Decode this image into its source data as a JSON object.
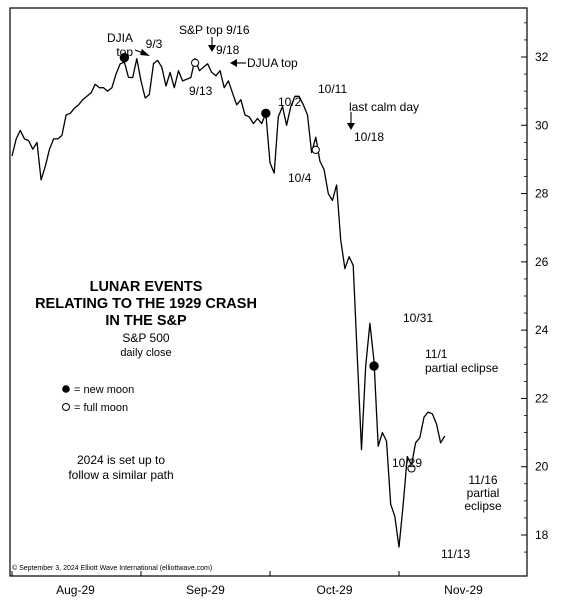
{
  "chart_data": {
    "type": "line",
    "title": [
      "LUNAR EVENTS",
      "RELATING TO THE 1929 CRASH",
      "IN THE S&P"
    ],
    "subtitle": [
      "S&P 500",
      "daily close"
    ],
    "xlabel": "",
    "ylabel": "",
    "ylim": [
      17,
      33.5
    ],
    "yticks": [
      18,
      20,
      22,
      24,
      26,
      28,
      30,
      32
    ],
    "xticks": [
      {
        "label": "Aug-29",
        "x": 0.25
      },
      {
        "label": "Sep-29",
        "x": 31.5
      },
      {
        "label": "Oct-29",
        "x": 62.5
      },
      {
        "label": "Nov-29",
        "x": 93.5
      }
    ],
    "xlim": [
      -15,
      109
    ],
    "series": [
      {
        "values": [
          [
            -15,
            29.1
          ],
          [
            -14,
            29.6
          ],
          [
            -13,
            29.85
          ],
          [
            -12,
            29.6
          ],
          [
            -11,
            29.55
          ],
          [
            -10,
            29.3
          ],
          [
            -9,
            29.5
          ],
          [
            -8,
            28.4
          ],
          [
            -7,
            28.8
          ],
          [
            -6,
            29.3
          ],
          [
            -5,
            29.6
          ],
          [
            -4,
            29.6
          ],
          [
            -3,
            29.7
          ],
          [
            -2,
            30.3
          ],
          [
            -1,
            30.35
          ],
          [
            0,
            30.5
          ],
          [
            1,
            30.6
          ],
          [
            2,
            30.75
          ],
          [
            3,
            30.85
          ],
          [
            4,
            30.95
          ],
          [
            5,
            31.2
          ],
          [
            6,
            31.1
          ],
          [
            7,
            31.1
          ],
          [
            8,
            31.0
          ],
          [
            9,
            31.1
          ],
          [
            10,
            31.5
          ],
          [
            11,
            31.8
          ],
          [
            12,
            31.85
          ],
          [
            13,
            31.4
          ],
          [
            14,
            31.4
          ],
          [
            15,
            31.95
          ],
          [
            16,
            31.3
          ],
          [
            17,
            30.8
          ],
          [
            18,
            30.9
          ],
          [
            19,
            31.8
          ],
          [
            20,
            31.9
          ],
          [
            21,
            31.7
          ],
          [
            22,
            31.15
          ],
          [
            23,
            31.55
          ],
          [
            24,
            31.1
          ],
          [
            25,
            31.6
          ],
          [
            26,
            31.3
          ],
          [
            27,
            31.35
          ],
          [
            28,
            31.4
          ],
          [
            29,
            31.95
          ],
          [
            30,
            31.6
          ],
          [
            31,
            31.7
          ],
          [
            32,
            31.8
          ],
          [
            33,
            31.55
          ],
          [
            34,
            31.45
          ],
          [
            35,
            31.6
          ],
          [
            36,
            31.1
          ],
          [
            37,
            31.3
          ],
          [
            38,
            30.95
          ],
          [
            39,
            30.6
          ],
          [
            40,
            30.75
          ],
          [
            41,
            30.3
          ],
          [
            42,
            30.25
          ],
          [
            43,
            30.05
          ],
          [
            44,
            30.2
          ],
          [
            45,
            30.05
          ],
          [
            46,
            30.35
          ],
          [
            47,
            28.9
          ],
          [
            48,
            28.6
          ],
          [
            49,
            30.25
          ],
          [
            50,
            30.55
          ],
          [
            51,
            30.0
          ],
          [
            52,
            30.55
          ],
          [
            53,
            30.85
          ],
          [
            54,
            30.85
          ],
          [
            55,
            30.6
          ],
          [
            56,
            30.3
          ],
          [
            57,
            29.2
          ],
          [
            58,
            29.65
          ],
          [
            59,
            28.95
          ],
          [
            60,
            28.7
          ],
          [
            61,
            28.0
          ],
          [
            62,
            27.8
          ],
          [
            63,
            28.25
          ],
          [
            64,
            26.65
          ],
          [
            65,
            25.8
          ],
          [
            66,
            26.15
          ],
          [
            67,
            25.9
          ],
          [
            68,
            23.15
          ],
          [
            69,
            20.5
          ],
          [
            70,
            22.95
          ],
          [
            71,
            24.2
          ],
          [
            72,
            23.1
          ],
          [
            73,
            20.6
          ],
          [
            74,
            21.0
          ],
          [
            75,
            20.75
          ],
          [
            76,
            18.9
          ],
          [
            77,
            18.55
          ],
          [
            78,
            17.65
          ],
          [
            79,
            18.9
          ],
          [
            80,
            20.3
          ],
          [
            81,
            20.05
          ],
          [
            82,
            20.7
          ],
          [
            83,
            20.85
          ],
          [
            84,
            21.45
          ],
          [
            85,
            21.6
          ],
          [
            86,
            21.55
          ],
          [
            87,
            21.25
          ],
          [
            88,
            20.7
          ],
          [
            89,
            20.9
          ]
        ]
      }
    ],
    "markers": [
      {
        "x": 12,
        "y": 31.98,
        "type": "new-moon"
      },
      {
        "x": 29,
        "y": 31.83,
        "type": "full-moon"
      },
      {
        "x": 46,
        "y": 30.35,
        "type": "new-moon"
      },
      {
        "x": 58,
        "y": 29.28,
        "type": "full-moon"
      },
      {
        "x": 72,
        "y": 22.95,
        "type": "new-moon"
      },
      {
        "x": 81,
        "y": 19.95,
        "type": "full-moon"
      }
    ],
    "annotations": [
      {
        "lines": [
          "DJIA",
          "top"
        ],
        "anchor": "end"
      },
      {
        "lines": [
          "9/3"
        ],
        "anchor": "middle"
      },
      {
        "lines": [
          "S&P top 9/16"
        ],
        "anchor": "start"
      },
      {
        "lines": [
          "9/18"
        ],
        "anchor": "start"
      },
      {
        "lines": [
          "DJUA top"
        ],
        "anchor": "start"
      },
      {
        "lines": [
          "9/13"
        ],
        "anchor": "start"
      },
      {
        "lines": [
          "10/2"
        ],
        "anchor": "start"
      },
      {
        "lines": [
          "10/4"
        ],
        "anchor": "start"
      },
      {
        "lines": [
          "10/11"
        ],
        "anchor": "start"
      },
      {
        "lines": [
          "last calm day"
        ],
        "anchor": "start"
      },
      {
        "lines": [
          "10/18"
        ],
        "anchor": "start"
      },
      {
        "lines": [
          "10/31"
        ],
        "anchor": "start"
      },
      {
        "lines": [
          "11/1",
          "partial eclipse"
        ],
        "anchor": "start"
      },
      {
        "lines": [
          "10/29"
        ],
        "anchor": "start"
      },
      {
        "lines": [
          "11/16",
          "partial",
          "eclipse"
        ],
        "anchor": "middle"
      },
      {
        "lines": [
          "11/13"
        ],
        "anchor": "start"
      }
    ],
    "legend": {
      "placement": "left",
      "items": [
        {
          "symbol": "filled-circle",
          "label": "= new moon"
        },
        {
          "symbol": "open-circle",
          "label": "= full moon"
        }
      ]
    },
    "note": [
      "2024 is set up to",
      "follow a similar path"
    ],
    "copyright": "© September 3, 2024 Elliott Wave International (elliottwave.com)",
    "grid": false
  }
}
